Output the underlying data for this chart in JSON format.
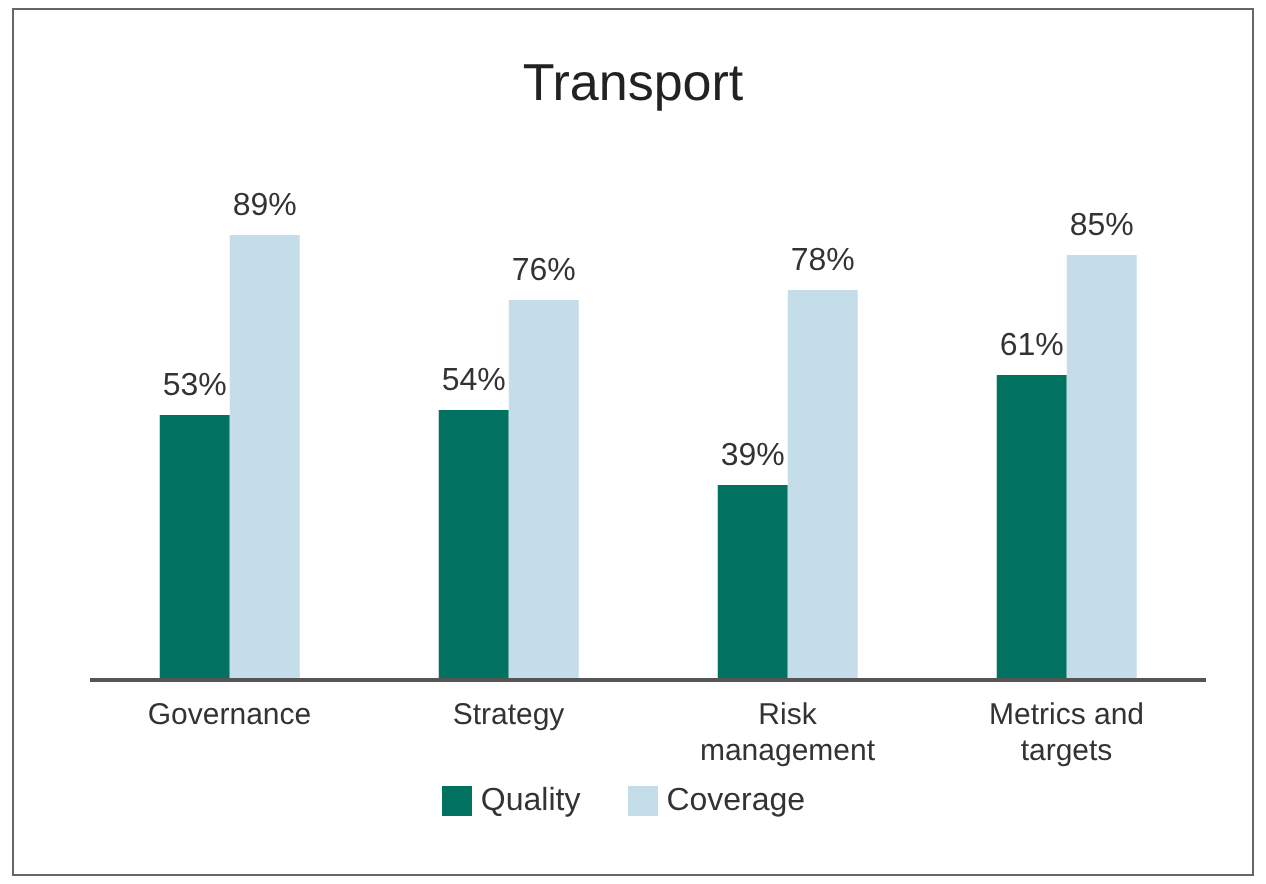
{
  "chart_data": {
    "type": "bar",
    "title": "Transport",
    "categories": [
      "Governance",
      "Strategy",
      "Risk management",
      "Metrics and targets"
    ],
    "series": [
      {
        "name": "Quality",
        "color": "#00725f",
        "values": [
          53,
          54,
          39,
          61
        ],
        "value_labels": [
          "53%",
          "54%",
          "39%",
          "61%"
        ]
      },
      {
        "name": "Coverage",
        "color": "#c5dde9",
        "values": [
          89,
          76,
          78,
          85
        ],
        "value_labels": [
          "89%",
          "76%",
          "78%",
          "85%"
        ]
      }
    ],
    "legend": "bottom",
    "grid": false
  }
}
